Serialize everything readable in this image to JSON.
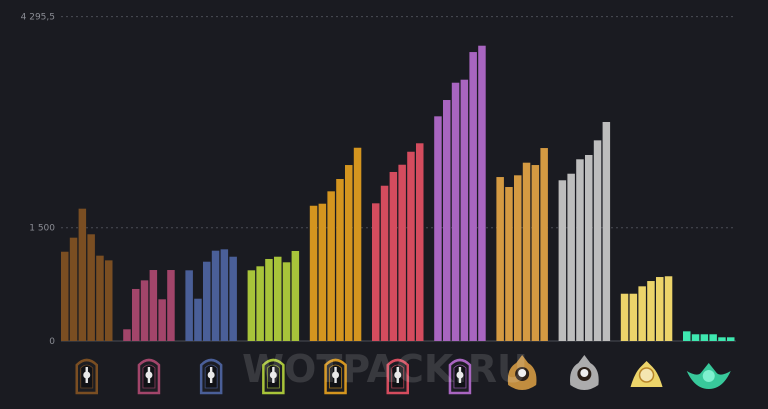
{
  "chart_data": {
    "type": "bar",
    "title": "",
    "xlabel": "",
    "ylabel": "",
    "ylim": [
      0,
      4295.5
    ],
    "y_ticks": [
      {
        "value": 0,
        "label": "0"
      },
      {
        "value": 1500,
        "label": "1 500"
      },
      {
        "value": 4295.5,
        "label": "4 295,5"
      }
    ],
    "grid": "horizontal dashed at tick values",
    "legend": "none; badge icons under each group",
    "groups": [
      {
        "icon": "hand-badge-icon",
        "color": "#7a4e22",
        "values": [
          1182,
          1368,
          1752,
          1413,
          1130,
          1068
        ]
      },
      {
        "icon": "eye-book-badge-icon",
        "color": "#a2456a",
        "values": [
          155,
          689,
          803,
          940,
          552,
          940
        ]
      },
      {
        "icon": "eye-key-badge-icon",
        "color": "#4a5f98",
        "values": [
          936,
          560,
          1050,
          1196,
          1214,
          1116
        ]
      },
      {
        "icon": "mask-badge-icon",
        "color": "#a8c43a",
        "values": [
          936,
          989,
          1086,
          1116,
          1042,
          1192
        ]
      },
      {
        "icon": "figure-badge-icon",
        "color": "#d4951f",
        "values": [
          1791,
          1818,
          1982,
          2145,
          2330,
          2559
        ]
      },
      {
        "icon": "wings-badge-icon",
        "color": "#d44c5e",
        "values": [
          1823,
          2056,
          2238,
          2334,
          2506,
          2618
        ]
      },
      {
        "icon": "castle-badge-icon",
        "color": "#a865c0",
        "values": [
          2975,
          3191,
          3420,
          3460,
          3826,
          3910
        ]
      },
      {
        "icon": "skull-horns-badge-icon",
        "color": "#d49a42",
        "values": [
          2171,
          2039,
          2194,
          2361,
          2330,
          2555
        ]
      },
      {
        "icon": "reaper-badge-icon",
        "color": "#bdbdbd",
        "values": [
          2128,
          2215,
          2406,
          2463,
          2657,
          2900
        ]
      },
      {
        "icon": "gold-emblem-badge-icon",
        "color": "#ecd46a",
        "values": [
          626,
          626,
          724,
          794,
          847,
          857
        ]
      },
      {
        "icon": "winged-crest-badge-icon",
        "color": "#3ee8b0",
        "values": [
          128,
          89,
          89,
          89,
          49,
          49
        ]
      }
    ]
  },
  "watermark": "WOTPACK.RU",
  "colors": {
    "background": "#1a1b21",
    "grid": "#4a4c55",
    "tick_text": "#8a8c94"
  }
}
